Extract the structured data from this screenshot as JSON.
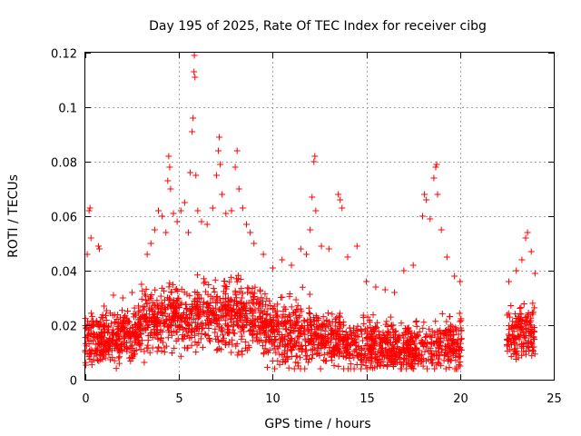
{
  "chart_data": {
    "type": "scatter",
    "title": "Day 195 of 2025, Rate Of TEC Index for receiver cibg",
    "xlabel": "GPS time / hours",
    "ylabel": "ROTI / TECUs",
    "xlim": [
      0,
      25
    ],
    "ylim": [
      0,
      0.12
    ],
    "x_ticks": [
      "0",
      "5",
      "10",
      "15",
      "20",
      "25"
    ],
    "y_ticks": [
      "0",
      "0.02",
      "0.04",
      "0.06",
      "0.08",
      "0.1",
      "0.12"
    ],
    "grid": true,
    "marker": "plus",
    "color": "#ff0000",
    "data_gaps_hours": [
      [
        20.1,
        22.5
      ]
    ],
    "series": [
      {
        "points": [
          [
            0.1,
            0.046
          ],
          [
            0.2,
            0.062
          ],
          [
            0.25,
            0.063
          ],
          [
            0.3,
            0.052
          ],
          [
            0.7,
            0.049
          ],
          [
            0.75,
            0.048
          ],
          [
            1.0,
            0.027
          ],
          [
            1.5,
            0.031
          ],
          [
            2.0,
            0.03
          ],
          [
            2.5,
            0.032
          ],
          [
            3.0,
            0.035
          ],
          [
            3.3,
            0.046
          ],
          [
            3.5,
            0.05
          ],
          [
            3.7,
            0.055
          ],
          [
            3.9,
            0.062
          ],
          [
            4.1,
            0.06
          ],
          [
            4.3,
            0.054
          ],
          [
            4.4,
            0.073
          ],
          [
            4.45,
            0.082
          ],
          [
            4.5,
            0.078
          ],
          [
            4.55,
            0.07
          ],
          [
            4.7,
            0.061
          ],
          [
            4.9,
            0.058
          ],
          [
            5.1,
            0.062
          ],
          [
            5.3,
            0.065
          ],
          [
            5.5,
            0.054
          ],
          [
            5.6,
            0.076
          ],
          [
            5.7,
            0.091
          ],
          [
            5.75,
            0.096
          ],
          [
            5.8,
            0.113
          ],
          [
            5.82,
            0.119
          ],
          [
            5.85,
            0.111
          ],
          [
            5.9,
            0.075
          ],
          [
            6.0,
            0.062
          ],
          [
            6.2,
            0.058
          ],
          [
            6.5,
            0.057
          ],
          [
            6.8,
            0.063
          ],
          [
            7.0,
            0.075
          ],
          [
            7.1,
            0.084
          ],
          [
            7.15,
            0.089
          ],
          [
            7.2,
            0.079
          ],
          [
            7.3,
            0.068
          ],
          [
            7.5,
            0.061
          ],
          [
            7.8,
            0.062
          ],
          [
            8.0,
            0.078
          ],
          [
            8.1,
            0.084
          ],
          [
            8.2,
            0.07
          ],
          [
            8.4,
            0.063
          ],
          [
            8.6,
            0.057
          ],
          [
            8.8,
            0.054
          ],
          [
            9.0,
            0.05
          ],
          [
            9.5,
            0.046
          ],
          [
            10.0,
            0.041
          ],
          [
            10.5,
            0.044
          ],
          [
            11.0,
            0.042
          ],
          [
            11.5,
            0.048
          ],
          [
            11.8,
            0.046
          ],
          [
            12.0,
            0.055
          ],
          [
            12.1,
            0.067
          ],
          [
            12.2,
            0.08
          ],
          [
            12.25,
            0.082
          ],
          [
            12.3,
            0.062
          ],
          [
            12.6,
            0.049
          ],
          [
            13.0,
            0.048
          ],
          [
            13.5,
            0.068
          ],
          [
            13.6,
            0.066
          ],
          [
            13.7,
            0.063
          ],
          [
            14.0,
            0.045
          ],
          [
            14.5,
            0.049
          ],
          [
            15.0,
            0.036
          ],
          [
            15.5,
            0.034
          ],
          [
            16.0,
            0.033
          ],
          [
            16.5,
            0.032
          ],
          [
            17.0,
            0.04
          ],
          [
            17.5,
            0.042
          ],
          [
            18.0,
            0.06
          ],
          [
            18.1,
            0.068
          ],
          [
            18.2,
            0.066
          ],
          [
            18.4,
            0.059
          ],
          [
            18.6,
            0.074
          ],
          [
            18.7,
            0.078
          ],
          [
            18.75,
            0.079
          ],
          [
            18.8,
            0.068
          ],
          [
            19.0,
            0.055
          ],
          [
            19.3,
            0.045
          ],
          [
            19.7,
            0.038
          ],
          [
            20.0,
            0.036
          ],
          [
            22.6,
            0.036
          ],
          [
            23.0,
            0.04
          ],
          [
            23.3,
            0.044
          ],
          [
            23.5,
            0.052
          ],
          [
            23.6,
            0.054
          ],
          [
            23.8,
            0.047
          ],
          [
            24.0,
            0.039
          ]
        ]
      }
    ]
  }
}
